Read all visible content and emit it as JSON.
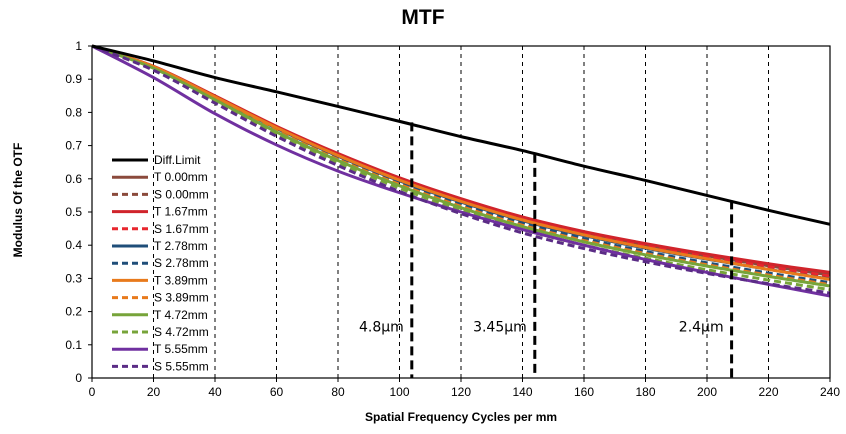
{
  "chart_data": {
    "type": "line",
    "title": "MTF",
    "xlabel": "Spatial Frequency Cycles per mm",
    "ylabel": "Modulus Of  the OTF",
    "xlim": [
      0,
      240
    ],
    "ylim": [
      0,
      1
    ],
    "xticks": [
      0,
      20,
      40,
      60,
      80,
      100,
      120,
      140,
      160,
      180,
      200,
      220,
      240
    ],
    "yticks": [
      0,
      0.1,
      0.2,
      0.3,
      0.4,
      0.5,
      0.6,
      0.7,
      0.8,
      0.9,
      1
    ],
    "grid": "vertical-dashed",
    "legend_position": "lower-left",
    "x": [
      0,
      20,
      40,
      60,
      80,
      100,
      120,
      140,
      160,
      180,
      200,
      220,
      240
    ],
    "series": [
      {
        "name": "Diff.Limit",
        "color": "#000000",
        "dash": "solid",
        "width": 3,
        "values": [
          1.0,
          0.955,
          0.905,
          0.862,
          0.818,
          0.773,
          0.727,
          0.685,
          0.638,
          0.595,
          0.55,
          0.505,
          0.463
        ]
      },
      {
        "name": "T 0.00mm",
        "color": "#8b4a3c",
        "dash": "solid",
        "width": 3,
        "values": [
          1.0,
          0.938,
          0.848,
          0.755,
          0.673,
          0.6,
          0.537,
          0.481,
          0.437,
          0.4,
          0.368,
          0.338,
          0.31
        ]
      },
      {
        "name": "S 0.00mm",
        "color": "#8b4a3c",
        "dash": "dashed",
        "width": 3,
        "values": [
          1.0,
          0.936,
          0.845,
          0.752,
          0.669,
          0.596,
          0.532,
          0.476,
          0.432,
          0.394,
          0.362,
          0.331,
          0.303
        ]
      },
      {
        "name": "T 1.67mm",
        "color": "#d0242b",
        "dash": "solid",
        "width": 3,
        "values": [
          1.0,
          0.939,
          0.85,
          0.758,
          0.676,
          0.603,
          0.54,
          0.485,
          0.441,
          0.405,
          0.373,
          0.344,
          0.318
        ]
      },
      {
        "name": "S 1.67mm",
        "color": "#e8262e",
        "dash": "dashed",
        "width": 3,
        "values": [
          1.0,
          0.937,
          0.846,
          0.753,
          0.67,
          0.597,
          0.533,
          0.478,
          0.434,
          0.397,
          0.365,
          0.335,
          0.307
        ]
      },
      {
        "name": "T 2.78mm",
        "color": "#1f4e79",
        "dash": "solid",
        "width": 3,
        "values": [
          1.0,
          0.937,
          0.846,
          0.752,
          0.668,
          0.594,
          0.53,
          0.474,
          0.429,
          0.391,
          0.358,
          0.327,
          0.298
        ]
      },
      {
        "name": "S 2.78mm",
        "color": "#1f4e79",
        "dash": "dashed",
        "width": 3,
        "values": [
          1.0,
          0.935,
          0.842,
          0.747,
          0.662,
          0.587,
          0.522,
          0.466,
          0.42,
          0.381,
          0.347,
          0.316,
          0.287
        ]
      },
      {
        "name": "T 3.89mm",
        "color": "#e87a1c",
        "dash": "solid",
        "width": 3,
        "values": [
          1.0,
          0.938,
          0.847,
          0.754,
          0.67,
          0.596,
          0.532,
          0.476,
          0.431,
          0.393,
          0.359,
          0.327,
          0.297
        ]
      },
      {
        "name": "S 3.89mm",
        "color": "#e87a1c",
        "dash": "dashed",
        "width": 3,
        "values": [
          1.0,
          0.934,
          0.84,
          0.744,
          0.658,
          0.583,
          0.517,
          0.46,
          0.414,
          0.375,
          0.341,
          0.31,
          0.281
        ]
      },
      {
        "name": "T 4.72mm",
        "color": "#77a43a",
        "dash": "solid",
        "width": 3,
        "values": [
          1.0,
          0.933,
          0.838,
          0.741,
          0.655,
          0.579,
          0.513,
          0.456,
          0.41,
          0.371,
          0.337,
          0.306,
          0.277
        ]
      },
      {
        "name": "S 4.72mm",
        "color": "#77a43a",
        "dash": "dashed",
        "width": 3,
        "values": [
          1.0,
          0.931,
          0.834,
          0.736,
          0.649,
          0.572,
          0.505,
          0.447,
          0.4,
          0.361,
          0.326,
          0.295,
          0.266
        ]
      },
      {
        "name": "T 5.55mm",
        "color": "#7030a0",
        "dash": "solid",
        "width": 3,
        "values": [
          1.0,
          0.905,
          0.796,
          0.702,
          0.623,
          0.558,
          0.5,
          0.447,
          0.4,
          0.357,
          0.318,
          0.282,
          0.247
        ]
      },
      {
        "name": "S 5.55mm",
        "color": "#5b2c86",
        "dash": "dashed",
        "width": 3,
        "values": [
          1.0,
          0.927,
          0.828,
          0.728,
          0.64,
          0.562,
          0.495,
          0.437,
          0.39,
          0.35,
          0.315,
          0.284,
          0.256
        ]
      }
    ],
    "markers": [
      {
        "x": 104,
        "y": 0.77,
        "label": "4.8μm"
      },
      {
        "x": 144,
        "y": 0.675,
        "label": "3.45μm"
      },
      {
        "x": 208,
        "y": 0.535,
        "label": "2.4μm"
      }
    ]
  }
}
